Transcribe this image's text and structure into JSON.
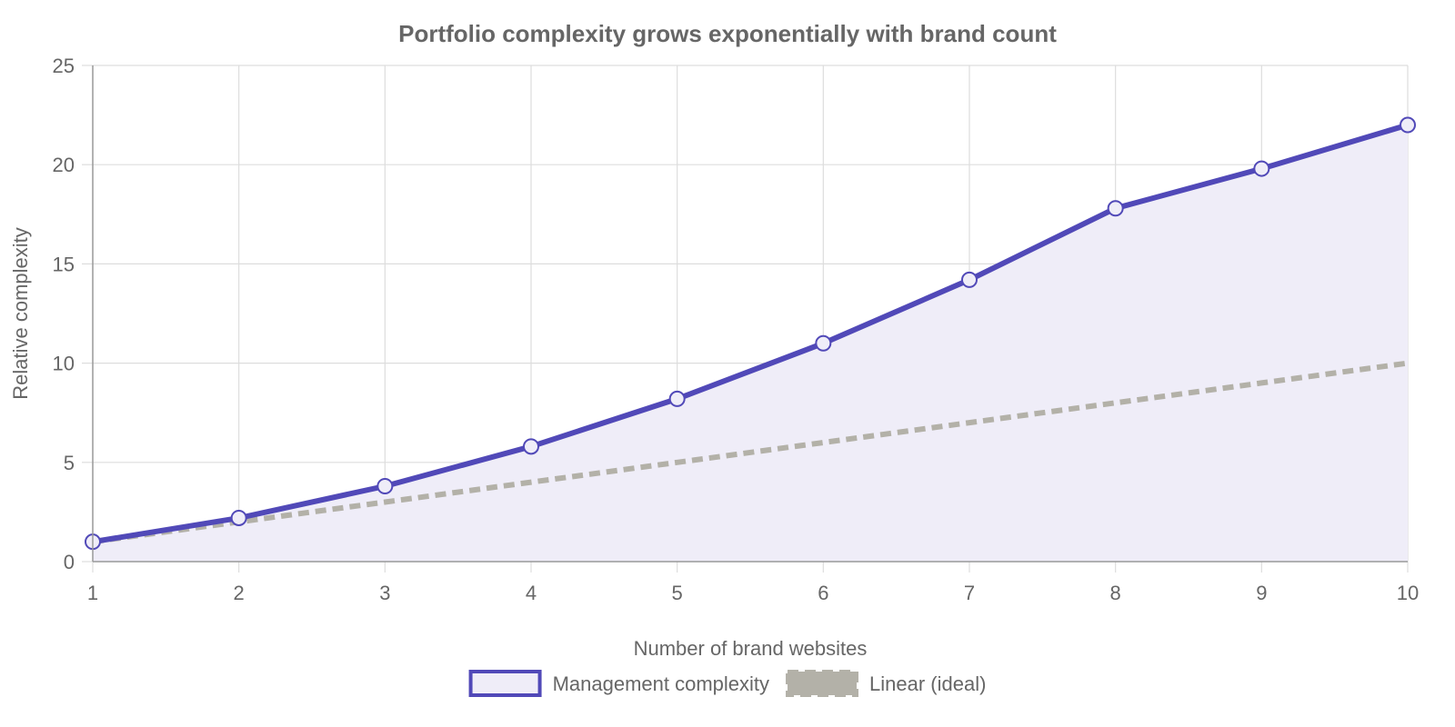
{
  "chart_data": {
    "type": "line",
    "title": "Portfolio complexity grows exponentially with brand count",
    "xlabel": "Number of brand websites",
    "ylabel": "Relative complexity",
    "x": [
      1,
      2,
      3,
      4,
      5,
      6,
      7,
      8,
      9,
      10
    ],
    "xlim": [
      1,
      10
    ],
    "ylim": [
      0,
      25
    ],
    "yticks": [
      0,
      5,
      10,
      15,
      20,
      25
    ],
    "grid": true,
    "legend": "bottom-center",
    "series": [
      {
        "name": "Management complexity",
        "values": [
          1,
          2.2,
          3.8,
          5.8,
          8.2,
          11,
          14.2,
          17.8,
          19.8,
          22
        ],
        "color": "#5149b8",
        "fill": "#efedf8",
        "style": "solid",
        "filled": true,
        "markers": true
      },
      {
        "name": "Linear (ideal)",
        "values": [
          1,
          2,
          3,
          4,
          5,
          6,
          7,
          8,
          9,
          10
        ],
        "color": "#b3b1a8",
        "style": "dashed",
        "filled": false,
        "markers": false
      }
    ]
  }
}
